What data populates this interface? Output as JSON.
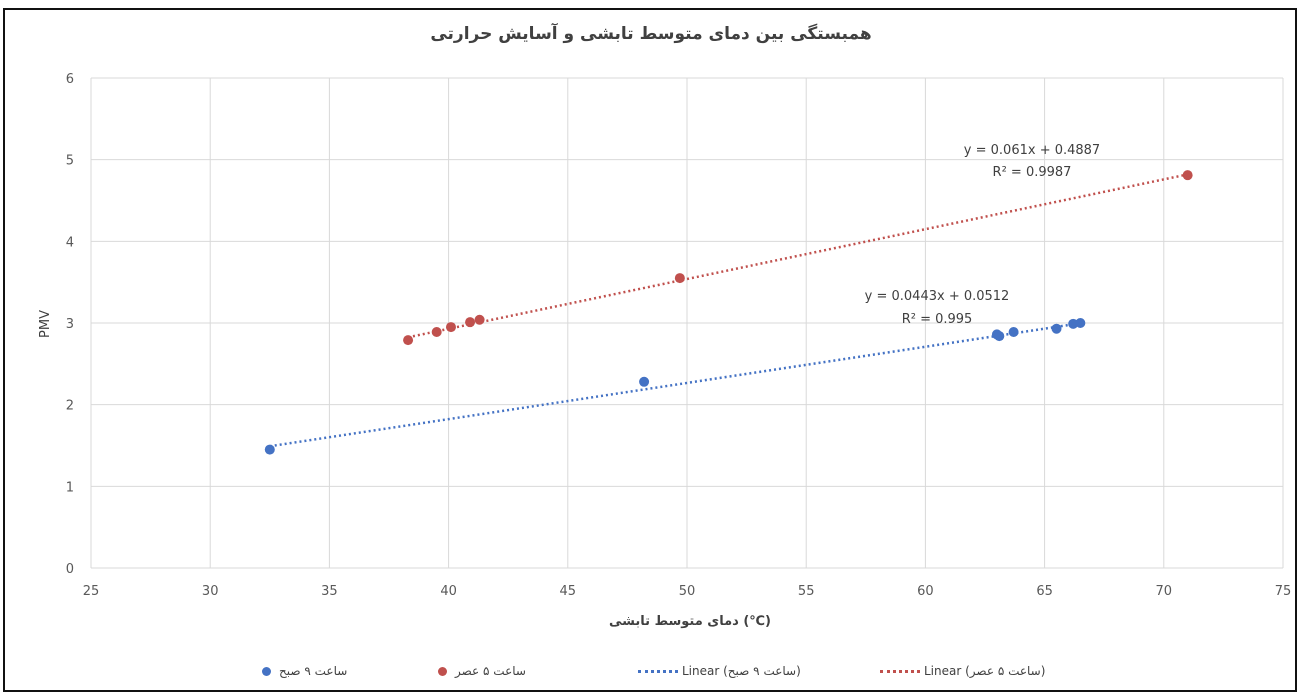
{
  "chart_data": {
    "type": "scatter",
    "title": "همبستگی بین دمای متوسط تابشی و آسایش حرارتی",
    "xlabel": "دمای متوسط تابشی (℃)",
    "ylabel": "PMV",
    "xlim": [
      25,
      75
    ],
    "ylim": [
      0,
      6
    ],
    "xticks": [
      "25",
      "30",
      "35",
      "40",
      "45",
      "50",
      "55",
      "60",
      "65",
      "70",
      "75"
    ],
    "yticks": [
      "0",
      "1",
      "2",
      "3",
      "4",
      "5",
      "6"
    ],
    "grid": true,
    "legend_position": "bottom",
    "series": [
      {
        "name": "ساعت ۹ صبح",
        "color": "#4472c4",
        "points": [
          [
            32.5,
            1.45
          ],
          [
            48.2,
            2.28
          ],
          [
            63.0,
            2.86
          ],
          [
            63.1,
            2.84
          ],
          [
            63.7,
            2.89
          ],
          [
            65.5,
            2.93
          ],
          [
            66.2,
            2.99
          ],
          [
            66.5,
            3.0
          ]
        ],
        "trendline": {
          "label": "Linear (ساعت ۹ صبح)",
          "slope": 0.0443,
          "intercept": 0.0512,
          "x_range": [
            32.5,
            66.5
          ],
          "equation": "y = 0.0443x + 0.0512",
          "r2": "R² = 0.995"
        }
      },
      {
        "name": "ساعت ۵ عصر",
        "color": "#c0504d",
        "points": [
          [
            38.3,
            2.79
          ],
          [
            39.5,
            2.89
          ],
          [
            40.1,
            2.95
          ],
          [
            40.9,
            3.01
          ],
          [
            41.3,
            3.04
          ],
          [
            49.7,
            3.55
          ],
          [
            71.0,
            4.81
          ]
        ],
        "trendline": {
          "label": "Linear (ساعت ۵ عصر)",
          "slope": 0.061,
          "intercept": 0.4887,
          "x_range": [
            38.3,
            71.0
          ],
          "equation": "y = 0.061x + 0.4887",
          "r2": "R² = 0.9987"
        }
      }
    ]
  }
}
